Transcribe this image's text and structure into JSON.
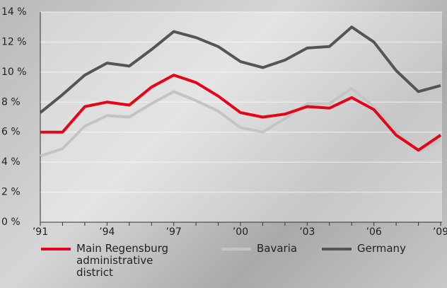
{
  "chart_data": {
    "type": "line",
    "categories": [
      "’91",
      null,
      null,
      "’94",
      null,
      null,
      "’97",
      null,
      null,
      "’00",
      null,
      null,
      "’03",
      null,
      null,
      "’06",
      null,
      null,
      "’09"
    ],
    "series": [
      {
        "name": "Main Regensburg administrative district",
        "color": "#e3061b",
        "values": [
          6.0,
          6.0,
          7.7,
          8.0,
          7.8,
          9.0,
          9.8,
          9.3,
          8.4,
          7.3,
          7.0,
          7.2,
          7.7,
          7.6,
          8.3,
          7.5,
          5.8,
          4.8,
          5.8
        ]
      },
      {
        "name": "Bavaria",
        "color": "#c4c4c4",
        "values": [
          4.4,
          4.9,
          6.4,
          7.1,
          7.0,
          7.9,
          8.7,
          8.1,
          7.4,
          6.3,
          6.0,
          6.9,
          7.9,
          7.9,
          8.9,
          7.7,
          6.1,
          4.7,
          5.5
        ]
      },
      {
        "name": "Germany",
        "color": "#555555",
        "values": [
          7.3,
          8.5,
          9.8,
          10.6,
          10.4,
          11.5,
          12.7,
          12.3,
          11.7,
          10.7,
          10.3,
          10.8,
          11.6,
          11.7,
          13.0,
          12.0,
          10.1,
          8.7,
          9.1
        ]
      }
    ],
    "ylim": [
      0,
      14
    ],
    "yticks": [
      {
        "value": 0,
        "label": "0 %"
      },
      {
        "value": 2,
        "label": "2 %"
      },
      {
        "value": 4,
        "label": "4 %"
      },
      {
        "value": 6,
        "label": "6 %"
      },
      {
        "value": 8,
        "label": "8 %"
      },
      {
        "value": 10,
        "label": "10 %"
      },
      {
        "value": 12,
        "label": "12 %"
      },
      {
        "value": 14,
        "label": "14 %"
      }
    ],
    "grid": true
  }
}
